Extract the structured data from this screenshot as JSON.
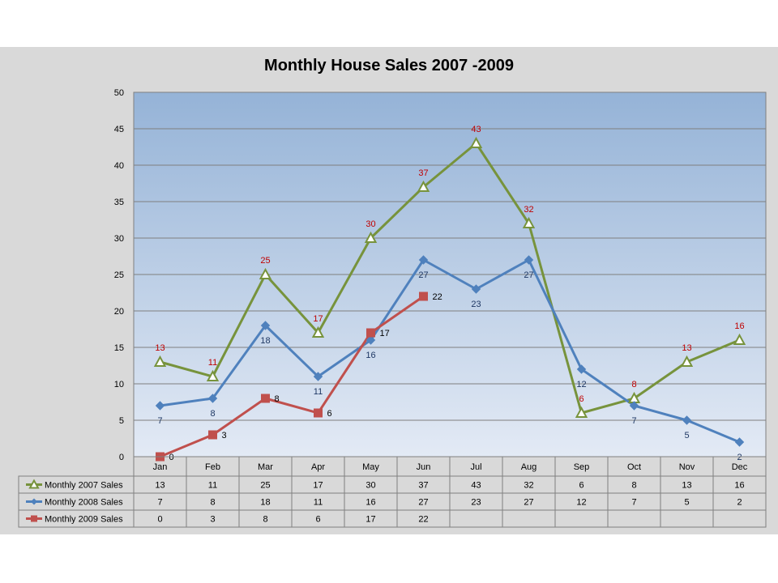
{
  "chart_data": {
    "type": "line",
    "title": "Monthly House Sales 2007 -2009",
    "categories": [
      "Jan",
      "Feb",
      "Mar",
      "Apr",
      "May",
      "Jun",
      "Jul",
      "Aug",
      "Sep",
      "Oct",
      "Nov",
      "Dec"
    ],
    "ylim": [
      0,
      50
    ],
    "yticks": [
      0,
      5,
      10,
      15,
      20,
      25,
      30,
      35,
      40,
      45,
      50
    ],
    "grid": true,
    "legend": "data-table-left",
    "series": [
      {
        "name": "Monthly 2007 Sales",
        "color": "#77933c",
        "marker": "triangle-open",
        "label_color": "#c00000",
        "values": [
          13,
          11,
          25,
          17,
          30,
          37,
          43,
          32,
          6,
          8,
          13,
          16
        ]
      },
      {
        "name": "Monthly 2008 Sales",
        "color": "#4f81bd",
        "marker": "diamond",
        "label_color": "#1f3864",
        "values": [
          7,
          8,
          18,
          11,
          16,
          27,
          23,
          27,
          12,
          7,
          5,
          2
        ]
      },
      {
        "name": "Monthly 2009 Sales",
        "color": "#c0504d",
        "marker": "square",
        "label_color": "#000000",
        "values": [
          0,
          3,
          8,
          6,
          17,
          22,
          null,
          null,
          null,
          null,
          null,
          null
        ]
      }
    ]
  }
}
